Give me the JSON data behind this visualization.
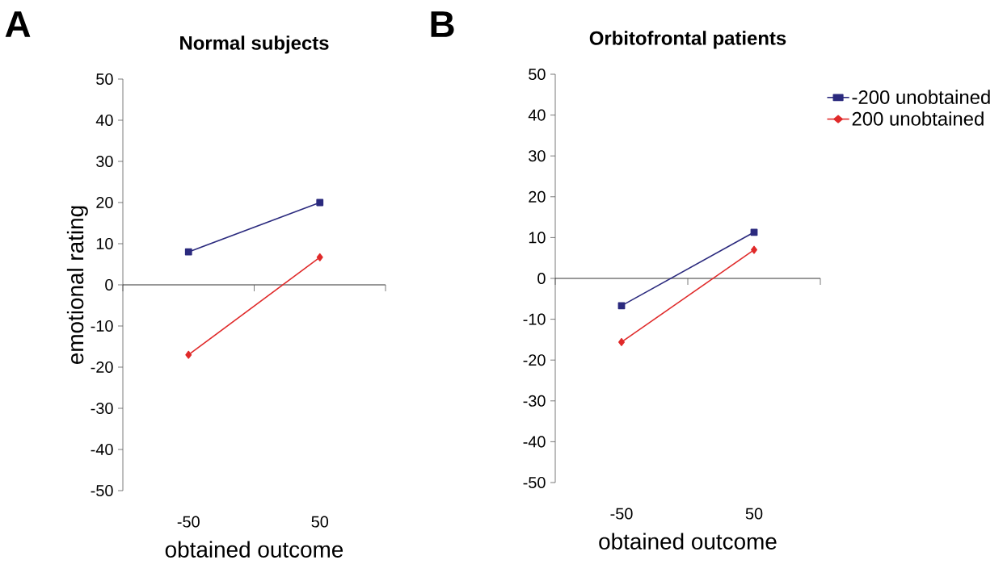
{
  "chart_data": [
    {
      "type": "line",
      "title": "Normal subjects",
      "annotations": [
        "A"
      ],
      "xlabel": "obtained outcome",
      "ylabel": "emotional rating",
      "categories": [
        "-50",
        "50"
      ],
      "series": [
        {
          "color": "#2b2a7e",
          "marker": "square",
          "values": [
            8,
            20
          ]
        },
        {
          "color": "#e02a2a",
          "marker": "diamond",
          "values": [
            -17,
            6.7
          ]
        }
      ],
      "ylim": [
        -50,
        50
      ],
      "yticks": [
        -50,
        -40,
        -30,
        -20,
        -10,
        0,
        10,
        20,
        30,
        40,
        50
      ]
    },
    {
      "type": "line",
      "title": "Orbitofrontal patients",
      "annotations": [
        "B"
      ],
      "xlabel": "obtained outcome",
      "categories": [
        "-50",
        "50"
      ],
      "series": [
        {
          "name": "-200 unobtained",
          "color": "#2b2a7e",
          "marker": "square",
          "values": [
            -6.7,
            11.3
          ]
        },
        {
          "name": "200 unobtained",
          "color": "#e02a2a",
          "marker": "diamond",
          "values": [
            -15.6,
            7
          ]
        }
      ],
      "ylim": [
        -50,
        50
      ],
      "yticks": [
        -50,
        -40,
        -30,
        -20,
        -10,
        0,
        10,
        20,
        30,
        40,
        50
      ],
      "legend": "top right"
    }
  ]
}
